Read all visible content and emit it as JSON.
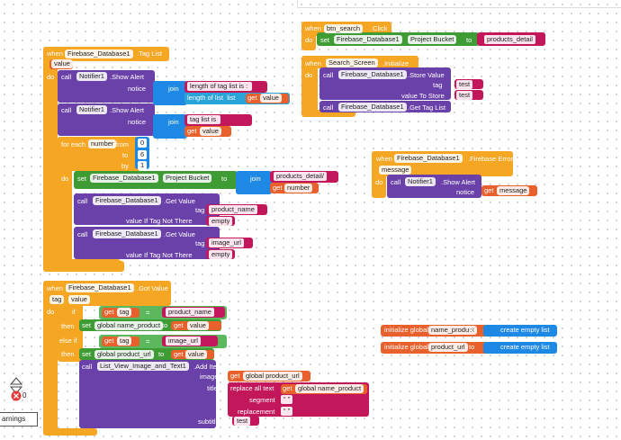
{
  "workspace": {
    "groups": [
      {
        "labels": [
          "when",
          "Firebase_Database1",
          ".Tag List",
          "value",
          "do",
          "call",
          "Notifier1",
          ".Show Alert",
          "notice",
          "join",
          "length of tag list is : ",
          "length of list  list",
          "get",
          "value",
          "call",
          "Notifier1",
          ".Show Alert",
          "notice",
          "join",
          "tag list is ",
          "get",
          "value",
          "for each",
          "number",
          "from",
          "0",
          "to",
          "6",
          "by",
          "1",
          "do",
          "set",
          "Firebase_Database1",
          "Project Bucket",
          "to",
          "join",
          "products_detail/",
          "get",
          "number",
          "call",
          "Firebase_Database1",
          ".Get Value",
          "tag",
          "product_name",
          "value If Tag Not There",
          "empty",
          "call",
          "Firebase_Database1",
          ".Get Value",
          "tag",
          "image_url",
          "value If Tag Not There",
          "empty"
        ]
      },
      {
        "labels": [
          "when",
          "btn_search",
          ".Click",
          "do",
          "set",
          "Firebase_Database1",
          "Project Bucket",
          "to",
          "products_detail"
        ]
      },
      {
        "labels": [
          "when",
          "Search_Screen",
          ".Initialize",
          "do",
          "call",
          "Firebase_Database1",
          ".Store Value",
          "tag",
          "test",
          "value To Store",
          "test",
          "call",
          "Firebase_Database1",
          ".Get Tag List"
        ]
      },
      {
        "labels": [
          "when",
          "Firebase_Database1",
          ".Firebase Error",
          "message",
          "do",
          "call",
          "Notifier1",
          ".Show Alert",
          "notice",
          "get",
          "message"
        ]
      },
      {
        "labels": [
          "when",
          "Firebase_Database1",
          ".Got Value",
          "tag",
          "value",
          "do",
          "if",
          "get",
          "tag",
          "=",
          "product_name",
          "then",
          "set",
          "global name_product",
          "to",
          "get",
          "value",
          "else if",
          "get",
          "tag",
          "=",
          "image_url",
          "then",
          "set",
          "global product_url",
          "to",
          "get",
          "value",
          "call",
          "List_View_Image_and_Text1",
          ".Add Item",
          "image",
          "get",
          "global product_url",
          "title",
          "replace all text",
          "get",
          "global name_product",
          "segment",
          "“ ”",
          "replacement",
          "“ ”",
          "subtitle",
          "test"
        ]
      },
      {
        "labels": [
          "initialize global",
          "name_product",
          "to",
          "create empty list",
          "initialize global",
          "product_url",
          "to",
          "create empty list"
        ]
      }
    ],
    "warnings": {
      "count": 0,
      "toggle": "arnings"
    }
  }
}
